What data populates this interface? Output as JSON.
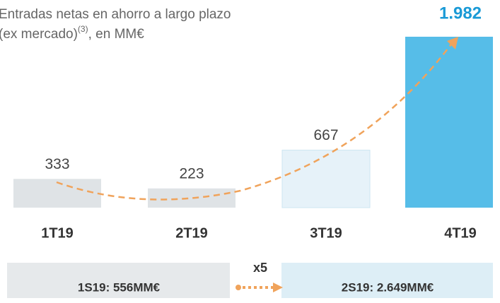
{
  "chart_data": {
    "type": "bar",
    "title": "Entradas netas en ahorro a largo plazo",
    "subtitle": {
      "text": "(ex mercado)",
      "note": "(3)",
      "suffix": ", en MM€"
    },
    "categories": [
      "1T19",
      "2T19",
      "3T19",
      "4T19"
    ],
    "values": [
      333,
      223,
      667,
      1982
    ],
    "value_labels": [
      "333",
      "223",
      "667",
      "1.982"
    ],
    "colors": [
      "#dfe3e6",
      "#dfe3e6",
      "#e6f2f9",
      "#56bde8"
    ],
    "summary": [
      {
        "label": "1S19: 556MM€",
        "color": "#e6e9eb"
      },
      {
        "label": "2S19: 2.649MM€",
        "color": "#ddeef6"
      }
    ],
    "multiplier": "x5"
  }
}
